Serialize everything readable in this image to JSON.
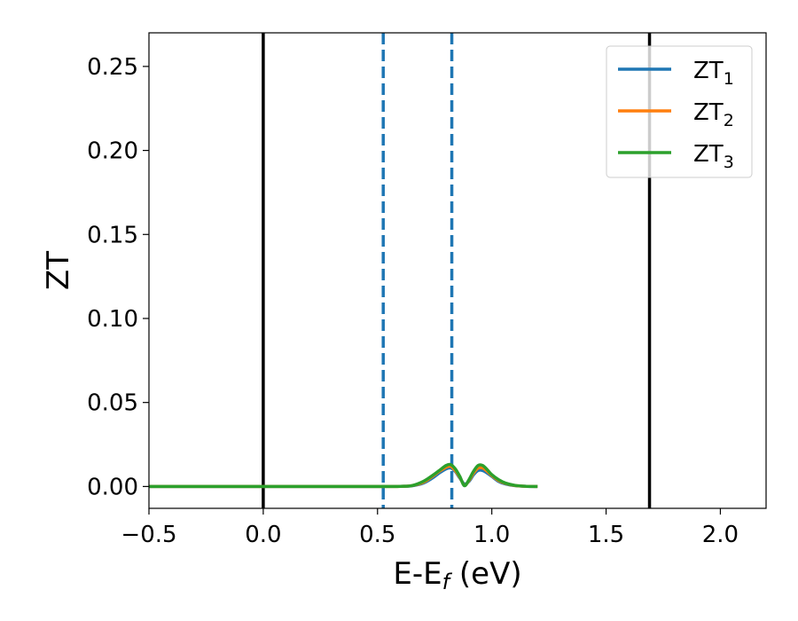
{
  "chart_data": {
    "type": "line",
    "title": "",
    "xlabel": {
      "base": "E-E",
      "sub": "f",
      "suffix": " (eV)"
    },
    "ylabel": "ZT",
    "xlim": [
      -0.5,
      2.2
    ],
    "ylim": [
      -0.013,
      0.27
    ],
    "xticks": [
      -0.5,
      0.0,
      0.5,
      1.0,
      1.5,
      2.0
    ],
    "xtick_labels": [
      "−0.5",
      "0.0",
      "0.5",
      "1.0",
      "1.5",
      "2.0"
    ],
    "yticks": [
      0.0,
      0.05,
      0.1,
      0.15,
      0.2,
      0.25
    ],
    "ytick_labels": [
      "0.00",
      "0.05",
      "0.10",
      "0.15",
      "0.20",
      "0.25"
    ],
    "grid": false,
    "legend_position": "top-right",
    "vertical_lines": [
      {
        "x": 0.0,
        "style": "solid",
        "color": "#000000"
      },
      {
        "x": 1.69,
        "style": "solid",
        "color": "#000000"
      },
      {
        "x": 0.525,
        "style": "dashed",
        "color": "#1f77b4"
      },
      {
        "x": 0.825,
        "style": "dashed",
        "color": "#1f77b4"
      }
    ],
    "x": [
      -0.5,
      -0.3,
      -0.1,
      0.1,
      0.3,
      0.5,
      0.6,
      0.65,
      0.7,
      0.74,
      0.77,
      0.8,
      0.82,
      0.84,
      0.86,
      0.88,
      0.9,
      0.92,
      0.94,
      0.96,
      0.98,
      1.0,
      1.03,
      1.06,
      1.1,
      1.15,
      1.2
    ],
    "series": [
      {
        "name_base": "ZT",
        "name_sub": "1",
        "color": "#1f77b4",
        "values": [
          0,
          0,
          0,
          0,
          0,
          0,
          0.0001,
          0.0004,
          0.002,
          0.005,
          0.008,
          0.0105,
          0.011,
          0.009,
          0.005,
          0.0015,
          0.003,
          0.007,
          0.0095,
          0.0095,
          0.008,
          0.006,
          0.003,
          0.0015,
          0.0005,
          0.0001,
          0
        ]
      },
      {
        "name_base": "ZT",
        "name_sub": "2",
        "color": "#ff7f0e",
        "values": [
          0,
          0,
          0,
          0,
          0,
          0,
          0.0001,
          0.0005,
          0.0025,
          0.006,
          0.009,
          0.0115,
          0.012,
          0.0095,
          0.0055,
          0.0008,
          0.0035,
          0.008,
          0.011,
          0.011,
          0.009,
          0.0065,
          0.0035,
          0.0018,
          0.0006,
          0.0001,
          0
        ]
      },
      {
        "name_base": "ZT",
        "name_sub": "3",
        "color": "#2ca02c",
        "values": [
          0,
          0,
          0,
          0,
          0,
          0,
          0.0001,
          0.0005,
          0.003,
          0.0065,
          0.0095,
          0.0125,
          0.013,
          0.0105,
          0.006,
          0.0005,
          0.004,
          0.009,
          0.0125,
          0.0125,
          0.01,
          0.007,
          0.004,
          0.002,
          0.0007,
          0.0001,
          0
        ]
      }
    ]
  }
}
